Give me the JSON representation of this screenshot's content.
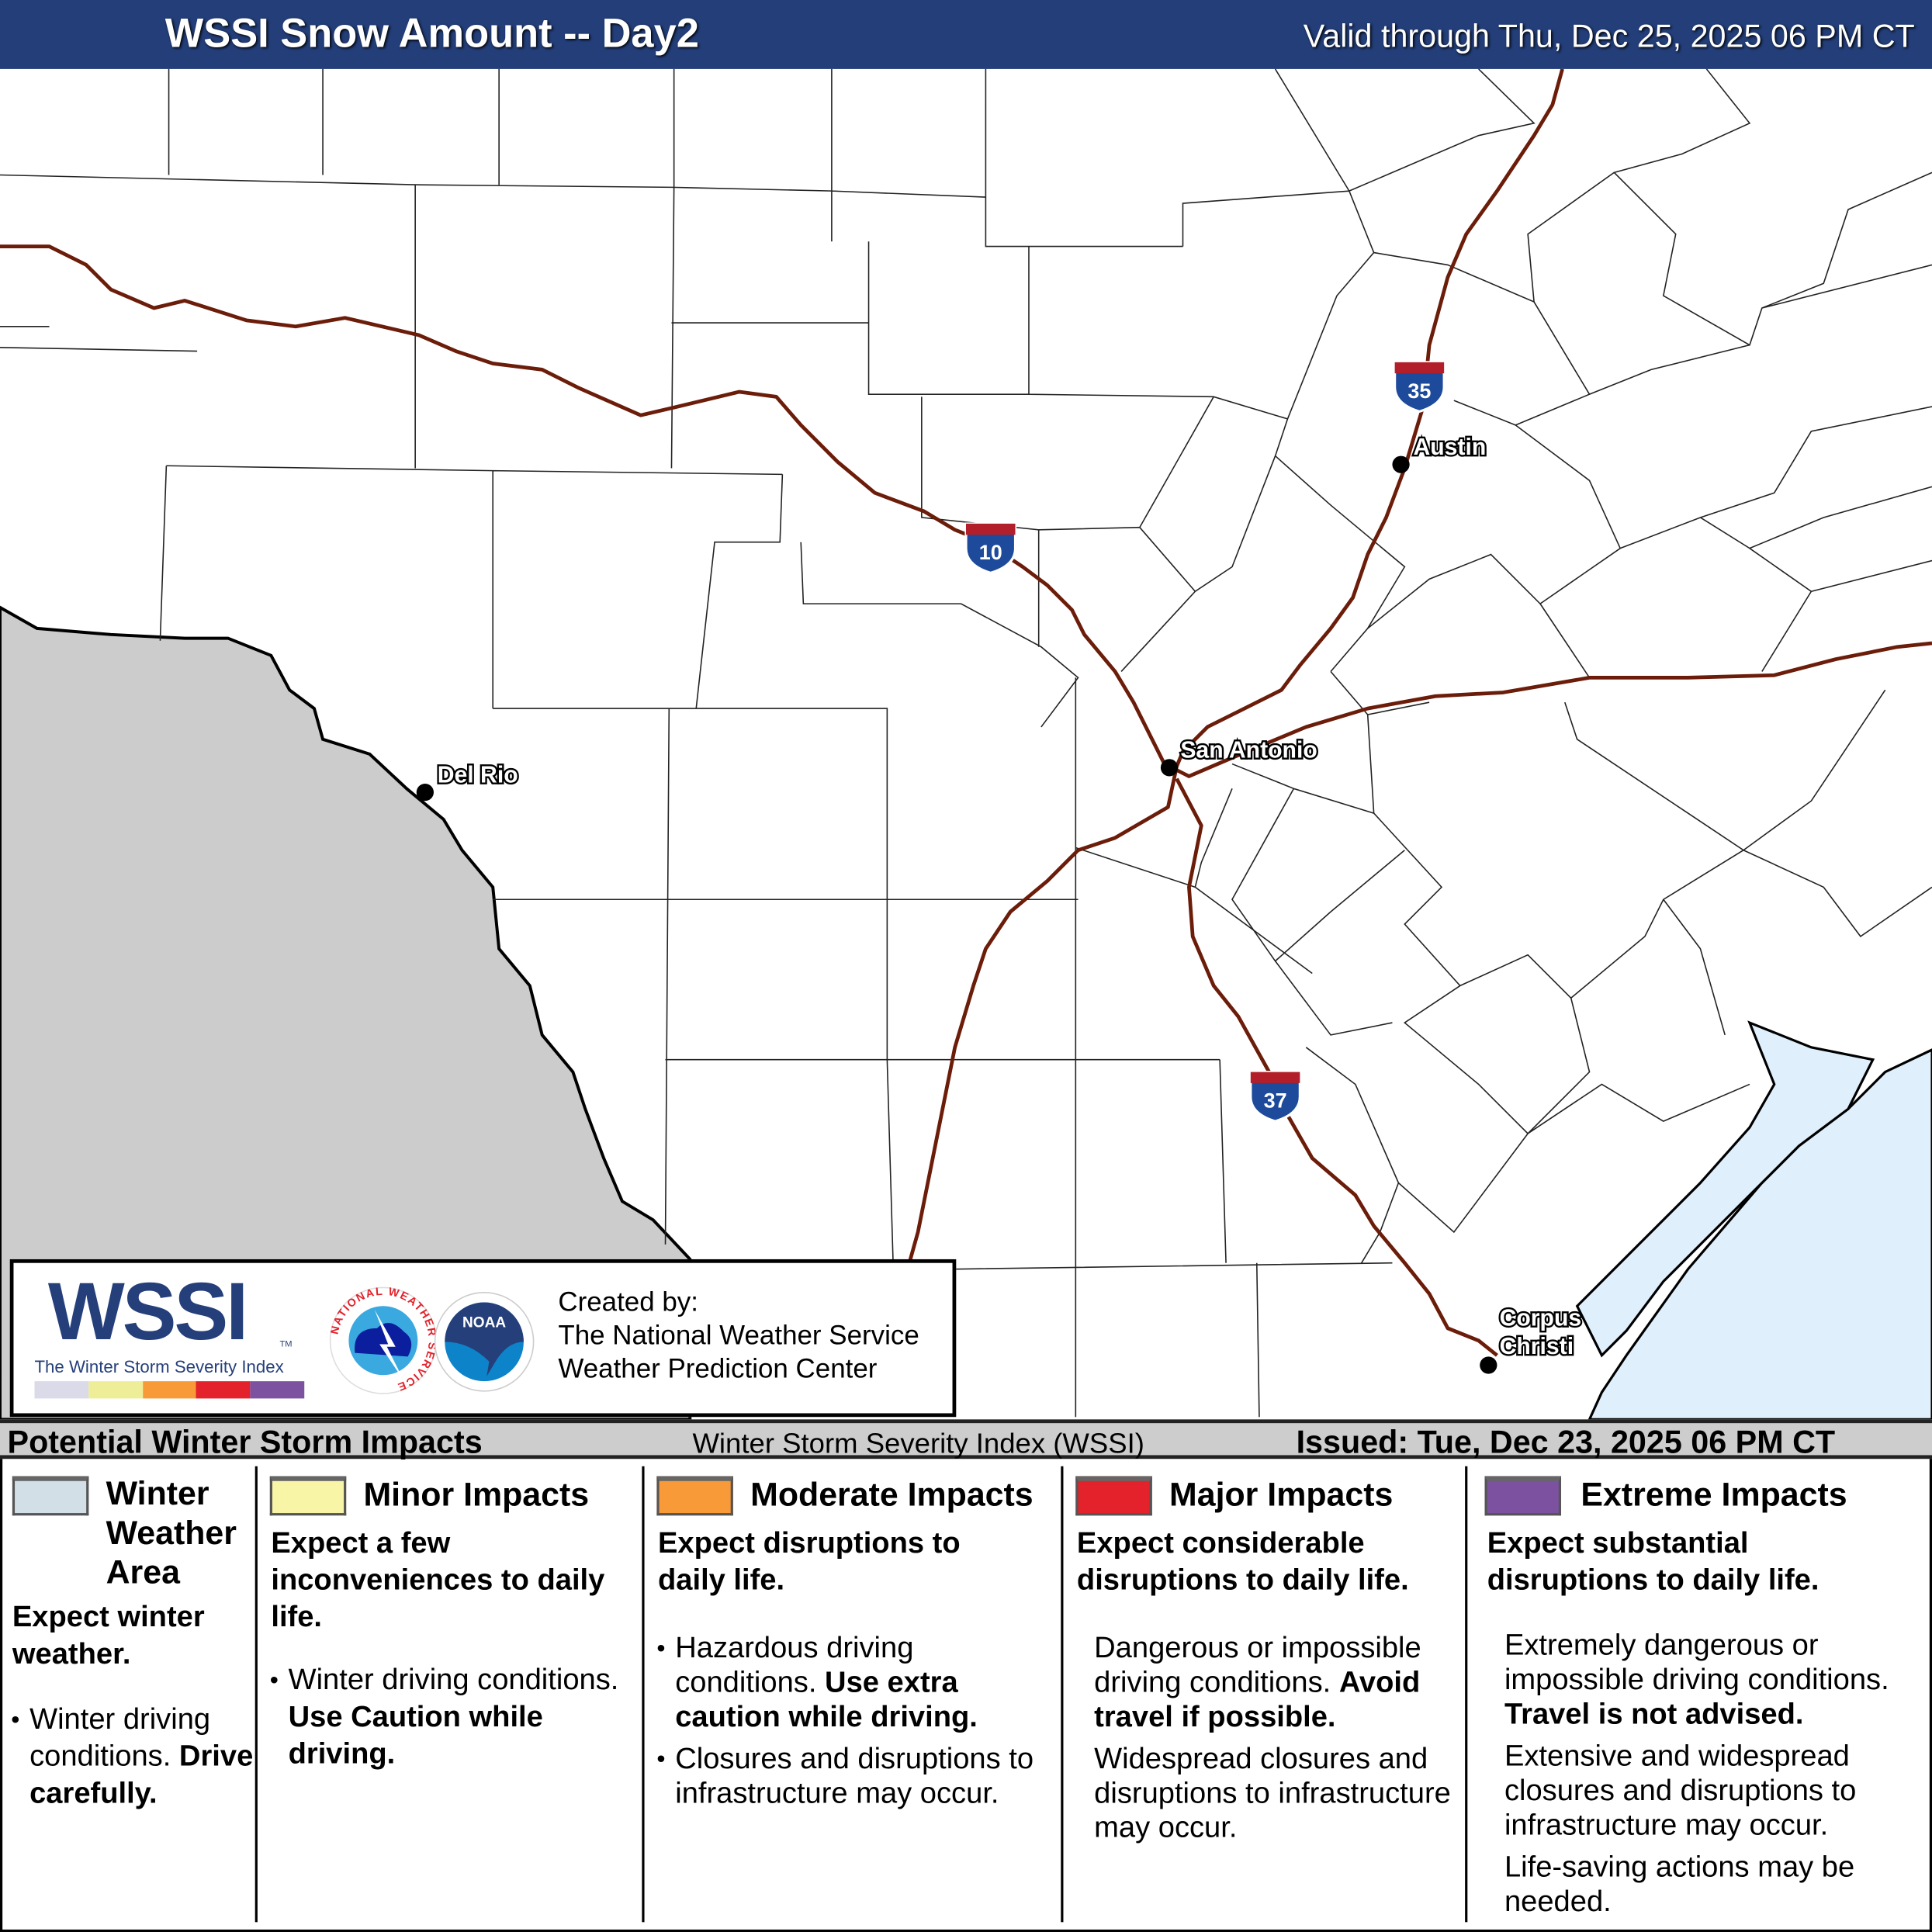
{
  "header": {
    "title": "WSSI Snow Amount -- Day2",
    "valid": "Valid through Thu, Dec 25, 2025 06 PM CT",
    "background_color": "#233e79"
  },
  "map": {
    "land_color": "#ffffff",
    "outside_area_color": "#cccccc",
    "water_color": "#dff0fc",
    "highway_color": "#6b1d0a",
    "highways": [
      {
        "shield": "35",
        "icon": "interstate-shield-icon"
      },
      {
        "shield": "10",
        "icon": "interstate-shield-icon"
      },
      {
        "shield": "37",
        "icon": "interstate-shield-icon"
      }
    ],
    "cities": [
      {
        "name": "Austin"
      },
      {
        "name": "San Antonio"
      },
      {
        "name": "Del Rio"
      },
      {
        "name": "Corpus Christi",
        "lines": [
          "Corpus",
          "Christi"
        ]
      }
    ]
  },
  "logo": {
    "wssi": "WSSI",
    "tm": "TM",
    "subtitle": "The Winter Storm Severity Index",
    "scale_colors": [
      "#dadae8",
      "#eeee98",
      "#f89a38",
      "#e3222b",
      "#7c52a0"
    ],
    "nws_logo_text": "NATIONAL WEATHER SERVICE",
    "noaa_logo_text": "NOAA",
    "created_by": "Created by:",
    "org1": "The National Weather Service",
    "org2": "Weather Prediction Center"
  },
  "legend_bar": {
    "left": "Potential Winter Storm Impacts",
    "center": "Winter Storm Severity Index (WSSI)",
    "issued": "Issued: Tue, Dec 23, 2025 06 PM CT"
  },
  "categories": [
    {
      "title_lines": [
        "Winter",
        "Weather",
        "Area"
      ],
      "color": "#d2dfe7",
      "summary": "Expect winter weather.",
      "detail": "Winter driving conditions.",
      "detail_bold": "Drive carefully."
    },
    {
      "title": "Minor Impacts",
      "color": "#f9f5a6",
      "summary": "Expect a few inconveniences to daily life.",
      "detail": "Winter driving conditions.",
      "detail_bold": "Use Caution while driving."
    },
    {
      "title": "Moderate Impacts",
      "color": "#f89a38",
      "summary": "Expect disruptions to daily life.",
      "detail": "Hazardous driving conditions.",
      "detail_bold": "Use extra caution while driving.",
      "detail2": "Closures and disruptions to infrastructure may occur."
    },
    {
      "title": "Major Impacts",
      "color": "#e3222b",
      "summary": "Expect considerable disruptions to daily life.",
      "detail": "Dangerous or impossible driving conditions.",
      "detail_bold": "Avoid travel if possible.",
      "detail2": "Widespread closures and disruptions to infrastructure may occur."
    },
    {
      "title": "Extreme Impacts",
      "color": "#7c52a0",
      "summary": "Expect substantial disruptions to daily life.",
      "detail": "Extremely dangerous or impossible driving conditions.",
      "detail_bold": "Travel is not advised.",
      "detail2": "Extensive and widespread closures and disruptions to infrastructure may occur.",
      "detail3": "Life-saving actions may be needed."
    }
  ]
}
